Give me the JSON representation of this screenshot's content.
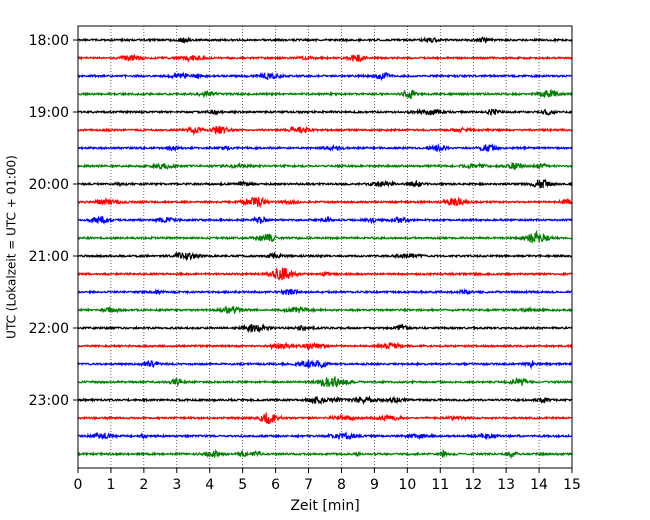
{
  "chart_data": {
    "type": "line",
    "title": "",
    "xlabel": "Zeit  [min]",
    "ylabel": "UTC (Lokalzeit = UTC + 01:00)",
    "xlim": [
      0,
      15
    ],
    "x_ticks": [
      0,
      1,
      2,
      3,
      4,
      5,
      6,
      7,
      8,
      9,
      10,
      11,
      12,
      13,
      14,
      15
    ],
    "x_tick_labels": [
      "0",
      "1",
      "2",
      "3",
      "4",
      "5",
      "6",
      "7",
      "8",
      "9",
      "10",
      "11",
      "12",
      "13",
      "14",
      "15"
    ],
    "y_tick_labels": [
      "18:00",
      "19:00",
      "20:00",
      "21:00",
      "22:00",
      "23:00"
    ],
    "line_offset_minutes": 15,
    "start_time": "18:00",
    "end_time": "23:45",
    "vertical_grid": true,
    "grid_style": "dotted",
    "line_colors": [
      "#000000",
      "#ff0000",
      "#0000ff",
      "#008000"
    ],
    "series": [
      {
        "start": "18:00",
        "color": "#000000"
      },
      {
        "start": "18:15",
        "color": "#ff0000"
      },
      {
        "start": "18:30",
        "color": "#0000ff"
      },
      {
        "start": "18:45",
        "color": "#008000"
      },
      {
        "start": "19:00",
        "color": "#000000"
      },
      {
        "start": "19:15",
        "color": "#ff0000"
      },
      {
        "start": "19:30",
        "color": "#0000ff"
      },
      {
        "start": "19:45",
        "color": "#008000"
      },
      {
        "start": "20:00",
        "color": "#000000"
      },
      {
        "start": "20:15",
        "color": "#ff0000"
      },
      {
        "start": "20:30",
        "color": "#0000ff"
      },
      {
        "start": "20:45",
        "color": "#008000"
      },
      {
        "start": "21:00",
        "color": "#000000"
      },
      {
        "start": "21:15",
        "color": "#ff0000"
      },
      {
        "start": "21:30",
        "color": "#0000ff"
      },
      {
        "start": "21:45",
        "color": "#008000"
      },
      {
        "start": "22:00",
        "color": "#000000"
      },
      {
        "start": "22:15",
        "color": "#ff0000"
      },
      {
        "start": "22:30",
        "color": "#0000ff"
      },
      {
        "start": "22:45",
        "color": "#008000"
      },
      {
        "start": "23:00",
        "color": "#000000"
      },
      {
        "start": "23:15",
        "color": "#ff0000"
      },
      {
        "start": "23:30",
        "color": "#0000ff"
      },
      {
        "start": "23:45",
        "color": "#008000"
      }
    ]
  }
}
